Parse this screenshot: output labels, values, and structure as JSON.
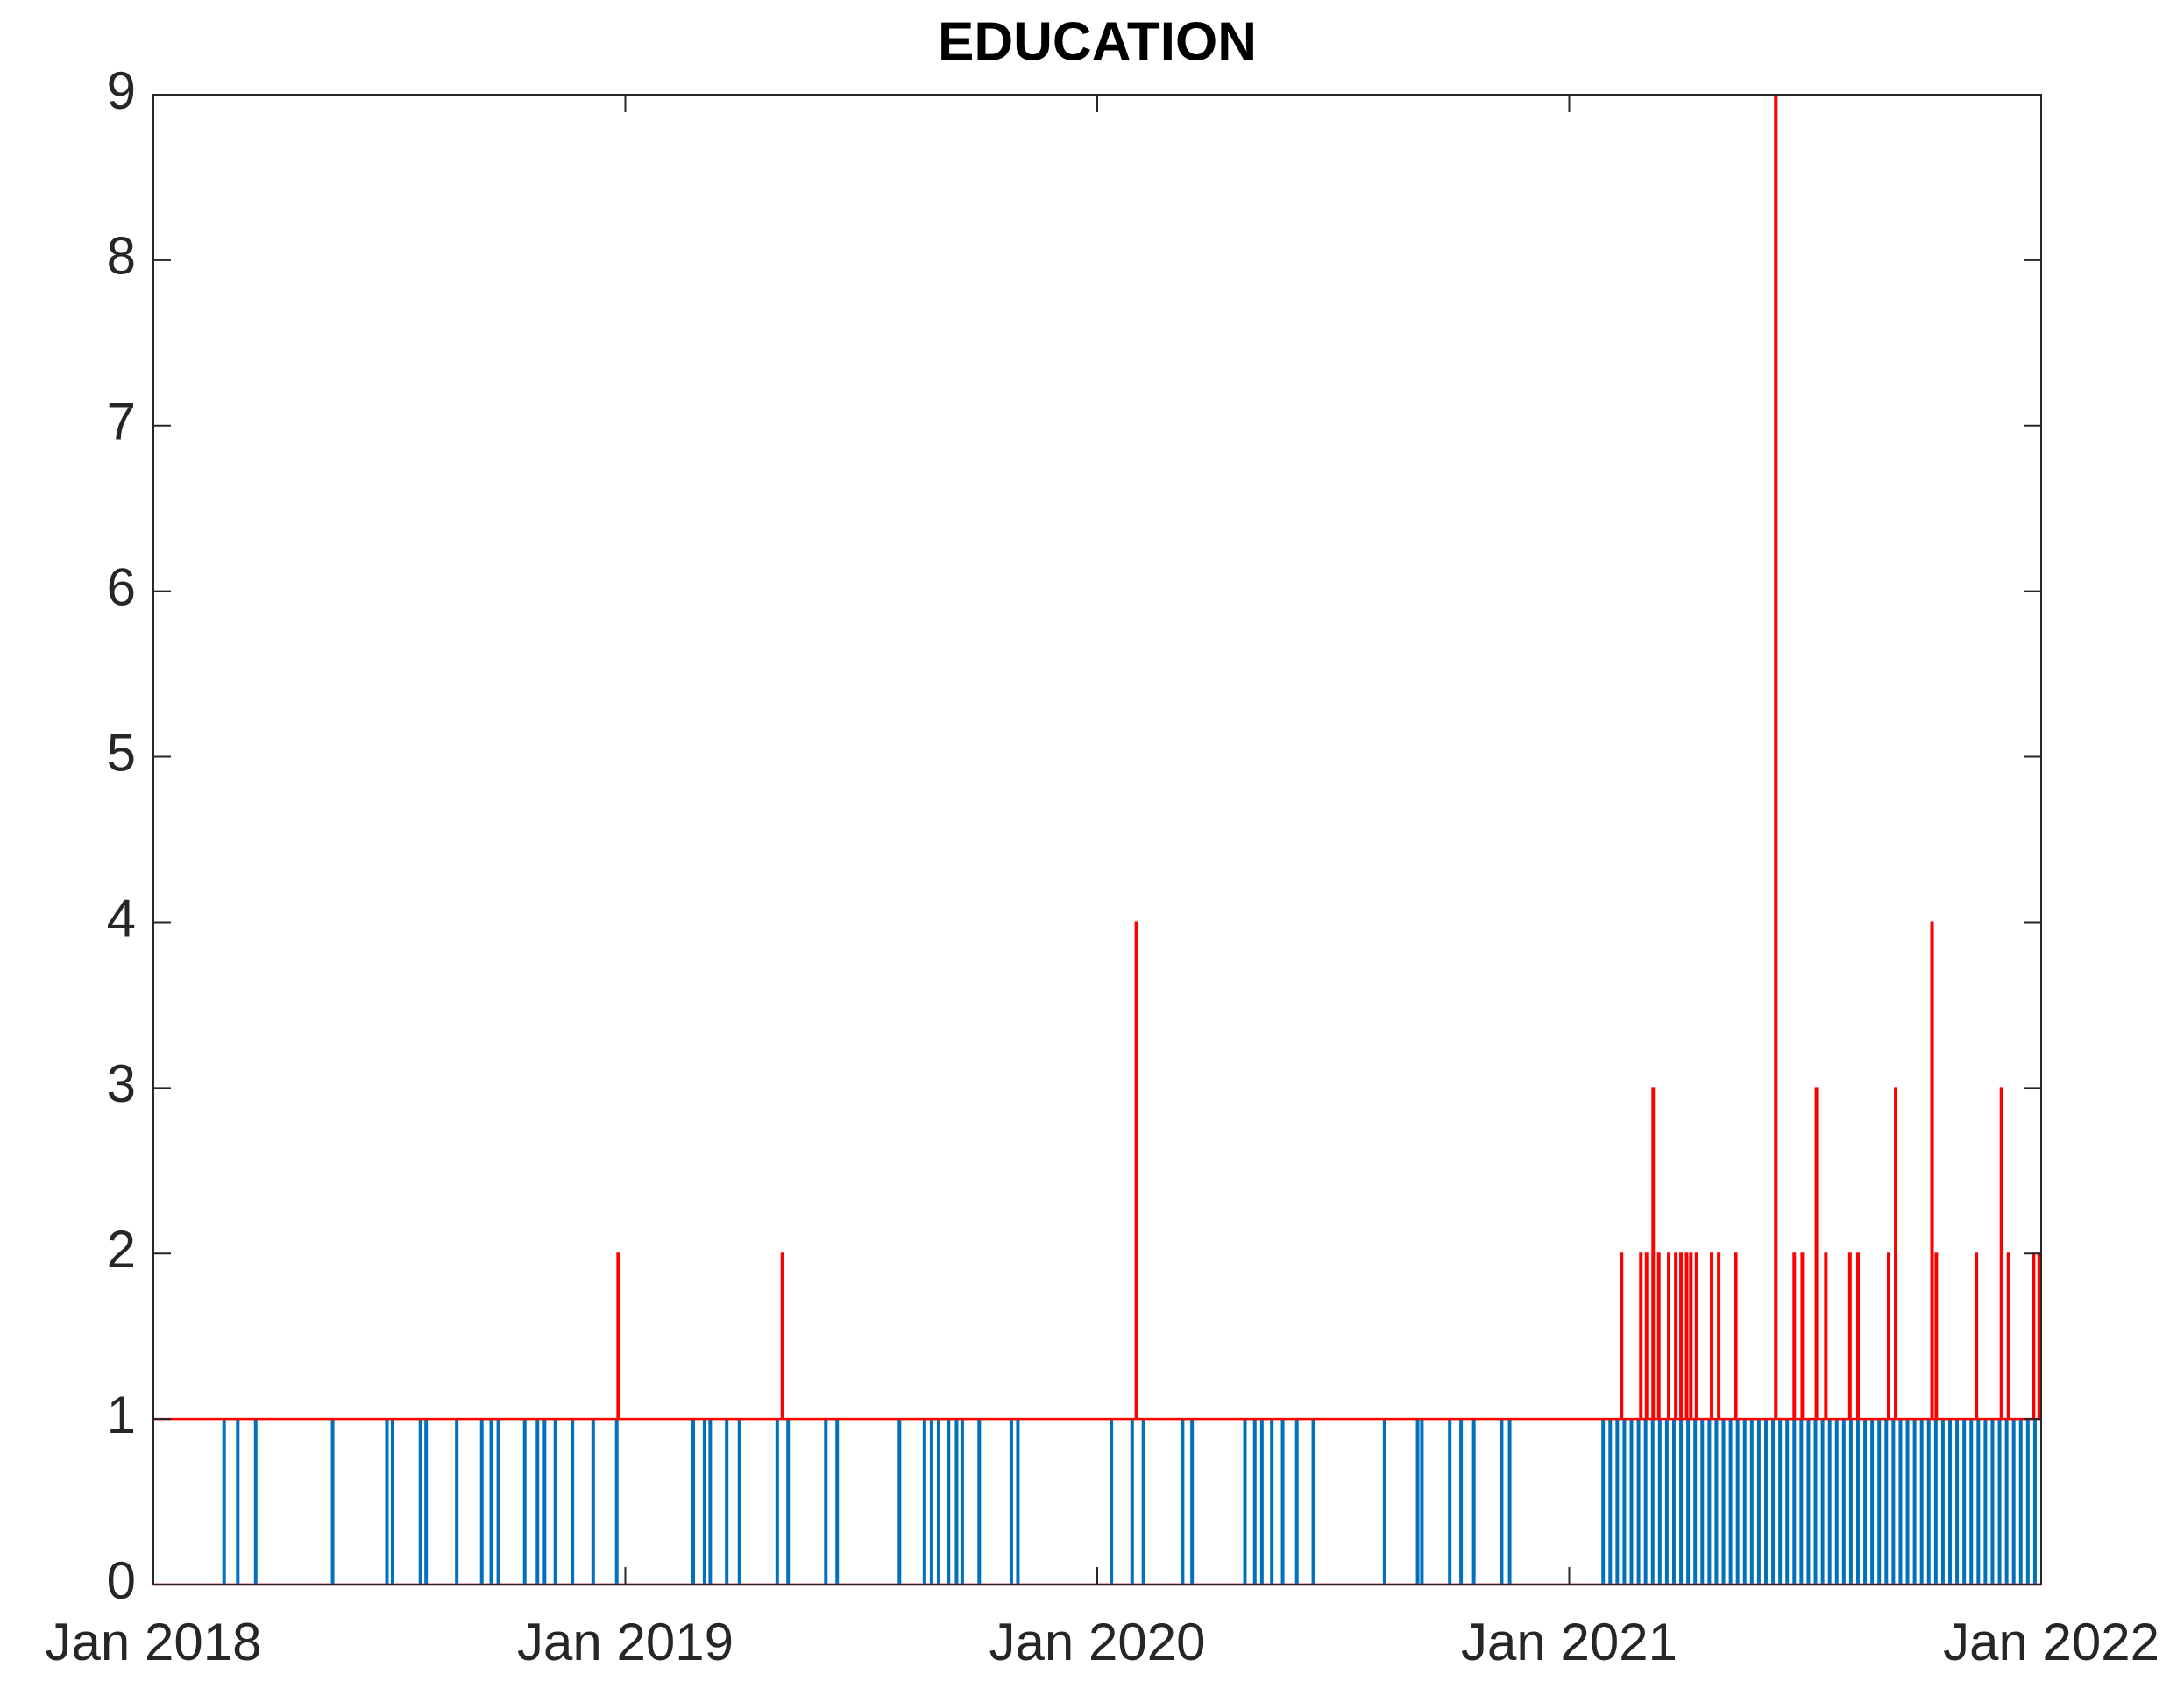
{
  "chart_data": {
    "type": "spike",
    "title": "EDUCATION",
    "xlim": [
      2018,
      2022
    ],
    "xticks": [
      {
        "value": 2018,
        "label": "Jan 2018"
      },
      {
        "value": 2019,
        "label": "Jan 2019"
      },
      {
        "value": 2020,
        "label": "Jan 2020"
      },
      {
        "value": 2021,
        "label": "Jan 2021"
      },
      {
        "value": 2022,
        "label": "Jan 2022"
      }
    ],
    "ylim": [
      0,
      9
    ],
    "yticks": [
      0,
      1,
      2,
      3,
      4,
      5,
      6,
      7,
      8,
      9
    ],
    "series": [
      {
        "color": "#0072bd",
        "baseline": 0,
        "x": [
          2018.148,
          2018.177,
          2018.215,
          2018.378,
          2018.493,
          2018.505,
          2018.564,
          2018.576,
          2018.641,
          2018.694,
          2018.714,
          2018.729,
          2018.785,
          2018.812,
          2018.827,
          2018.85,
          2018.886,
          2018.93,
          2018.98,
          2019.142,
          2019.166,
          2019.178,
          2019.213,
          2019.24,
          2019.32,
          2019.343,
          2019.423,
          2019.447,
          2019.579,
          2019.632,
          2019.647,
          2019.662,
          2019.683,
          2019.7,
          2019.712,
          2019.748,
          2019.816,
          2019.83,
          2020.028,
          2020.072,
          2020.096,
          2020.179,
          2020.199,
          2020.311,
          2020.332,
          2020.347,
          2020.368,
          2020.391,
          2020.421,
          2020.456,
          2020.607,
          2020.677,
          2020.686,
          2020.745,
          2020.769,
          2020.796,
          2020.855,
          2020.872,
          2021.07,
          2021.085,
          2021.1,
          2021.115,
          2021.13,
          2021.145,
          2021.16,
          2021.175,
          2021.19,
          2021.205,
          2021.22,
          2021.235,
          2021.25,
          2021.265,
          2021.28,
          2021.295,
          2021.31,
          2021.325,
          2021.34,
          2021.355,
          2021.37,
          2021.385,
          2021.4,
          2021.415,
          2021.43,
          2021.445,
          2021.46,
          2021.475,
          2021.49,
          2021.505,
          2021.52,
          2021.535,
          2021.55,
          2021.565,
          2021.58,
          2021.595,
          2021.61,
          2021.625,
          2021.64,
          2021.655,
          2021.67,
          2021.685,
          2021.7,
          2021.715,
          2021.73,
          2021.745,
          2021.76,
          2021.775,
          2021.79,
          2021.805,
          2021.82,
          2021.835,
          2021.85,
          2021.865,
          2021.88,
          2021.895,
          2021.91,
          2021.925,
          2021.94,
          2021.955,
          2021.97,
          2021.985
        ],
        "values": [
          1,
          1,
          1,
          1,
          1,
          1,
          1,
          1,
          1,
          1,
          1,
          1,
          1,
          1,
          1,
          1,
          1,
          1,
          1,
          1,
          1,
          1,
          1,
          1,
          1,
          1,
          1,
          1,
          1,
          1,
          1,
          1,
          1,
          1,
          1,
          1,
          1,
          1,
          1,
          1,
          1,
          1,
          1,
          1,
          1,
          1,
          1,
          1,
          1,
          1,
          1,
          1,
          1,
          1,
          1,
          1,
          1,
          1,
          1,
          1,
          1,
          1,
          1,
          1,
          1,
          1,
          1,
          1,
          1,
          1,
          1,
          1,
          1,
          1,
          1,
          1,
          1,
          1,
          1,
          1,
          1,
          1,
          1,
          1,
          1,
          1,
          1,
          1,
          1,
          1,
          1,
          1,
          1,
          1,
          1,
          1,
          1,
          1,
          1,
          1,
          1,
          1,
          1,
          1,
          1,
          1,
          1,
          1,
          1,
          1,
          1,
          1,
          1,
          1,
          1,
          1,
          1,
          1,
          1,
          1
        ]
      },
      {
        "color": "#ff0000",
        "baseline": 1,
        "x": [
          2018.983,
          2019.331,
          2020.081,
          2021.109,
          2021.15,
          2021.162,
          2021.176,
          2021.188,
          2021.209,
          2021.224,
          2021.235,
          2021.247,
          2021.256,
          2021.268,
          2021.3,
          2021.315,
          2021.351,
          2021.436,
          2021.475,
          2021.492,
          2021.522,
          2021.542,
          2021.593,
          2021.61,
          2021.675,
          2021.69,
          2021.767,
          2021.776,
          2021.861,
          2021.914,
          2021.929,
          2021.982,
          2021.994
        ],
        "values": [
          2,
          2,
          4,
          2,
          2,
          2,
          3,
          2,
          2,
          2,
          2,
          2,
          2,
          2,
          2,
          2,
          2,
          9,
          2,
          2,
          3,
          2,
          2,
          2,
          2,
          3,
          4,
          2,
          2,
          3,
          2,
          2,
          2
        ]
      },
      {
        "color": "#ff0000",
        "baseline": 0,
        "x": [],
        "values": []
      }
    ]
  }
}
